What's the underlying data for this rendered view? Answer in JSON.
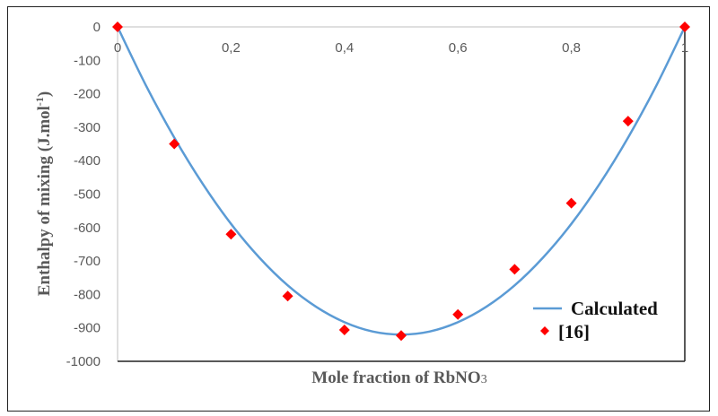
{
  "chart_data": {
    "type": "scatter",
    "xlabel": "Mole fraction of RbNO",
    "xlabel_subscript": "3",
    "ylabel": "Enthalpy of mixing (J.mol",
    "ylabel_superscript": "-1",
    "ylabel_close": ")",
    "xlim": [
      0,
      1
    ],
    "ylim": [
      -1000,
      0
    ],
    "x_ticks": [
      0,
      0.2,
      0.4,
      0.6,
      0.8,
      1
    ],
    "x_tick_labels": [
      "0",
      "0,2",
      "0,4",
      "0,6",
      "0,8",
      "1"
    ],
    "y_ticks": [
      0,
      -100,
      -200,
      -300,
      -400,
      -500,
      -600,
      -700,
      -800,
      -900,
      -1000
    ],
    "y_tick_labels": [
      "0",
      "-100",
      "-200",
      "-300",
      "-400",
      "-500",
      "-600",
      "-700",
      "-800",
      "-900",
      "-1000"
    ],
    "grid": false,
    "legend_position": "bottom-right",
    "series": [
      {
        "name": "Calculated",
        "kind": "line",
        "color": "#5b9bd5",
        "x": [
          0,
          0.05,
          0.1,
          0.15,
          0.2,
          0.25,
          0.3,
          0.35,
          0.4,
          0.45,
          0.5,
          0.55,
          0.6,
          0.65,
          0.7,
          0.75,
          0.8,
          0.85,
          0.9,
          0.95,
          1
        ],
        "y": [
          0,
          -175,
          -331,
          -469,
          -589,
          -690,
          -773,
          -837,
          -883,
          -911,
          -920,
          -911,
          -883,
          -837,
          -773,
          -690,
          -589,
          -469,
          -331,
          -175,
          0
        ]
      },
      {
        "name": "[16]",
        "kind": "scatter",
        "marker": "diamond",
        "color": "#ff0000",
        "x": [
          0,
          0.1,
          0.2,
          0.3,
          0.4,
          0.5,
          0.6,
          0.7,
          0.8,
          0.9,
          1
        ],
        "y": [
          0,
          -350,
          -620,
          -805,
          -906,
          -923,
          -860,
          -725,
          -527,
          -282,
          0
        ]
      }
    ]
  }
}
